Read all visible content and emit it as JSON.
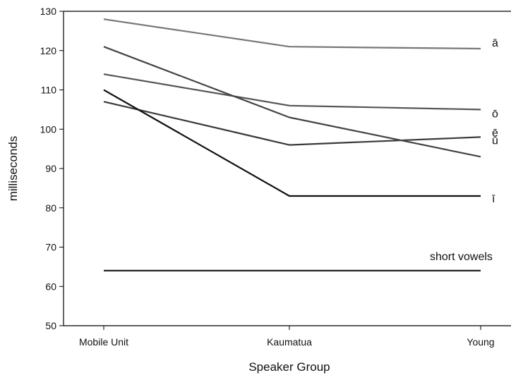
{
  "chart_data": {
    "type": "line",
    "title": "",
    "xlabel": "Speaker Group",
    "ylabel": "milliseconds",
    "categories": [
      "Mobile Unit",
      "Kaumatua",
      "Young"
    ],
    "ylim": [
      50,
      130
    ],
    "yticks": [
      50,
      60,
      70,
      80,
      90,
      100,
      110,
      120,
      130
    ],
    "grid": false,
    "series": [
      {
        "name": "ā",
        "values": [
          128,
          121,
          120.5
        ],
        "color": "#777777"
      },
      {
        "name": "ō",
        "values": [
          114,
          106,
          105
        ],
        "color": "#555555"
      },
      {
        "name": "ē",
        "values": [
          107,
          96,
          98
        ],
        "color": "#3a3a3a"
      },
      {
        "name": "ū",
        "values": [
          121,
          103,
          93
        ],
        "color": "#444444"
      },
      {
        "name": "ī",
        "values": [
          110,
          83,
          83
        ],
        "color": "#111111"
      },
      {
        "name": "short vowels",
        "values": [
          64,
          64,
          64
        ],
        "color": "#222222"
      }
    ]
  }
}
